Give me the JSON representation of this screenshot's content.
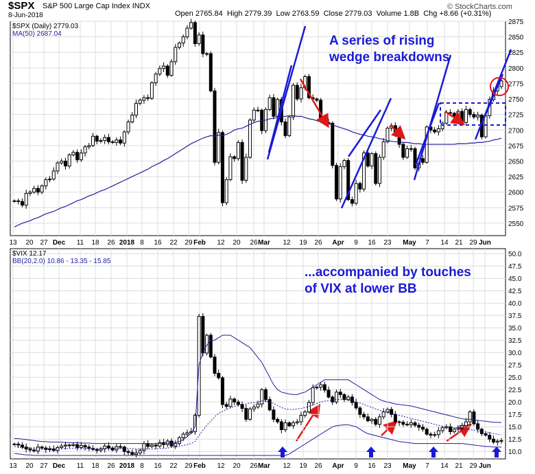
{
  "header": {
    "symbol": "$SPX",
    "name": "S&P 500 Large Cap Index",
    "exchange": "INDX",
    "date": "8-Jun-2018",
    "open_label": "Open",
    "open": "2765.84",
    "high_label": "High",
    "high": "2779.39",
    "low_label": "Low",
    "low": "2763.59",
    "close_label": "Close",
    "close": "2779.03",
    "volume_label": "Volume",
    "volume": "1.8B",
    "chg_label": "Chg",
    "chg": "+8.66 (+0.31%)",
    "brand": "© StockCharts.com"
  },
  "annotations": {
    "top_line1": "A series of rising",
    "top_line2": "wedge breakdowns",
    "bottom_line1": "...accompanied by touches",
    "bottom_line2": "of VIX at lower BB"
  },
  "colors": {
    "candle": "#000000",
    "ma": "#1f1f9e",
    "annotation": "#1a1ad6",
    "arrow": "#e01818",
    "grid": "#dcdcdc"
  },
  "chart_data": [
    {
      "type": "candlestick",
      "legend": [
        "$SPX (Daily) 2779.03",
        "MA(50) 2687.04"
      ],
      "ylim": [
        2530,
        2875
      ],
      "y_ticks": [
        2550,
        2575,
        2600,
        2625,
        2650,
        2675,
        2700,
        2725,
        2750,
        2775,
        2800,
        2825,
        2850,
        2875
      ],
      "x_tick_labels": [
        "13",
        "20",
        "27",
        "Dec",
        "11",
        "18",
        "26",
        "2018",
        "8",
        "16",
        "22",
        "29",
        "Feb",
        "12",
        "20",
        "26",
        "Mar",
        "12",
        "19",
        "26",
        "Apr",
        "9",
        "16",
        "23",
        "May",
        "7",
        "14",
        "21",
        "29",
        "Jun"
      ],
      "close": [
        2586,
        2585,
        2579,
        2598,
        2600,
        2606,
        2600,
        2610,
        2620,
        2621,
        2634,
        2647,
        2650,
        2642,
        2660,
        2664,
        2652,
        2663,
        2673,
        2675,
        2690,
        2682,
        2683,
        2688,
        2681,
        2680,
        2684,
        2679,
        2697,
        2713,
        2724,
        2743,
        2748,
        2752,
        2751,
        2776,
        2790,
        2799,
        2803,
        2788,
        2810,
        2833,
        2840,
        2850,
        2864,
        2873,
        2839,
        2853,
        2823,
        2823,
        2763,
        2648,
        2696,
        2583,
        2620,
        2657,
        2654,
        2680,
        2619,
        2656,
        2716,
        2732,
        2732,
        2699,
        2733,
        2752,
        2722,
        2749,
        2713,
        2691,
        2721,
        2772,
        2750,
        2768,
        2786,
        2752,
        2750,
        2748,
        2717,
        2712,
        2711,
        2643,
        2589,
        2641,
        2651,
        2588,
        2582,
        2614,
        2605,
        2663,
        2642,
        2662,
        2614,
        2656,
        2681,
        2703,
        2707,
        2692,
        2677,
        2656,
        2670,
        2670,
        2639,
        2654,
        2648,
        2705,
        2700,
        2697,
        2702,
        2711,
        2728,
        2727,
        2722,
        2730,
        2712,
        2733,
        2725,
        2721,
        2724,
        2689,
        2723,
        2749,
        2763,
        2770,
        2779
      ],
      "ma50": [
        2544,
        2547,
        2550,
        2552,
        2554,
        2557,
        2559,
        2562,
        2565,
        2567,
        2569,
        2572,
        2575,
        2577,
        2580,
        2583,
        2586,
        2588,
        2591,
        2594,
        2596,
        2599,
        2602,
        2604,
        2607,
        2610,
        2613,
        2616,
        2619,
        2622,
        2625,
        2628,
        2631,
        2634,
        2637,
        2641,
        2644,
        2647,
        2651,
        2654,
        2658,
        2662,
        2666,
        2670,
        2674,
        2678,
        2681,
        2684,
        2687,
        2689,
        2691,
        2690,
        2692,
        2691,
        2693,
        2696,
        2700,
        2702,
        2703,
        2706,
        2709,
        2712,
        2714,
        2715,
        2716,
        2718,
        2719,
        2720,
        2721,
        2722,
        2723,
        2723,
        2722,
        2722,
        2720,
        2718,
        2717,
        2715,
        2713,
        2711,
        2710,
        2708,
        2706,
        2704,
        2702,
        2700,
        2697,
        2695,
        2693,
        2692,
        2690,
        2689,
        2688,
        2686,
        2685,
        2683,
        2682,
        2681,
        2681,
        2680,
        2680,
        2679,
        2678,
        2678,
        2677,
        2677,
        2677,
        2677,
        2677,
        2677,
        2677,
        2677,
        2677,
        2678,
        2678,
        2678,
        2679,
        2679,
        2680,
        2680,
        2681,
        2682,
        2684,
        2685,
        2687
      ]
    },
    {
      "type": "candlestick",
      "legend": [
        "$VIX 12.17",
        "BB(20,2.0) 10.86 - 13.35 - 15.85"
      ],
      "ylim": [
        8.5,
        51
      ],
      "y_ticks": [
        10,
        12.5,
        15,
        17.5,
        20,
        22.5,
        25,
        27.5,
        30,
        32.5,
        35,
        37.5,
        40,
        42.5,
        45,
        47.5,
        50
      ],
      "y_tick_labels": [
        "10.0",
        "12.5",
        "15.0",
        "17.5",
        "20.0",
        "22.5",
        "25.0",
        "27.5",
        "30.0",
        "32.5",
        "35.0",
        "37.5",
        "40.0",
        "42.5",
        "45.0",
        "47.5",
        "50.0"
      ],
      "x_tick_labels": [
        "13",
        "20",
        "27",
        "Dec",
        "11",
        "18",
        "26",
        "2018",
        "8",
        "16",
        "22",
        "29",
        "Feb",
        "12",
        "20",
        "26",
        "Mar",
        "12",
        "19",
        "26",
        "Apr",
        "9",
        "16",
        "23",
        "May",
        "7",
        "14",
        "21",
        "29",
        "Jun"
      ],
      "close": [
        11.5,
        11.3,
        10.9,
        10.5,
        10.3,
        10.1,
        10.9,
        10.7,
        10.4,
        10.5,
        10.2,
        10.8,
        11.1,
        11.3,
        11.2,
        11.4,
        10.8,
        11.2,
        10.9,
        10.6,
        10.4,
        10.2,
        10.5,
        11.1,
        10.7,
        10.3,
        11.0,
        10.9,
        10.0,
        9.8,
        9.4,
        9.7,
        10.2,
        11.6,
        11.0,
        11.3,
        11.1,
        11.8,
        11.4,
        12.1,
        11.1,
        11.6,
        12.8,
        13.5,
        13.8,
        14.0,
        17.3,
        37.3,
        29.9,
        33.5,
        29.1,
        25.8,
        24.9,
        19.5,
        19.1,
        20.6,
        20.0,
        19.5,
        18.7,
        16.5,
        18.6,
        19.0,
        19.6,
        22.5,
        20.5,
        18.4,
        16.5,
        16.0,
        14.4,
        15.8,
        15.2,
        15.8,
        16.0,
        17.3,
        18.0,
        19.9,
        22.9,
        23.0,
        23.5,
        22.4,
        21.0,
        20.0,
        22.0,
        21.5,
        20.5,
        21.0,
        19.9,
        18.8,
        17.5,
        17.0,
        16.2,
        16.5,
        15.5,
        17.0,
        18.0,
        18.5,
        17.5,
        16.0,
        15.9,
        15.5,
        15.4,
        15.8,
        15.3,
        14.9,
        14.5,
        13.5,
        13.3,
        13.4,
        14.2,
        14.8,
        15.0,
        14.0,
        14.5,
        14.8,
        15.2,
        16.0,
        18.0,
        15.6,
        14.5,
        13.6,
        13.3,
        12.5,
        11.9,
        12.1,
        12.2
      ],
      "bb_upper": [
        12.6,
        12.6,
        12.5,
        12.4,
        12.3,
        12.2,
        12.1,
        12.0,
        12.0,
        11.9,
        11.9,
        11.9,
        11.9,
        11.8,
        11.8,
        11.8,
        11.8,
        11.7,
        11.7,
        11.7,
        11.6,
        11.6,
        11.6,
        11.6,
        11.6,
        11.6,
        11.6,
        11.6,
        11.6,
        11.6,
        11.6,
        11.6,
        11.6,
        11.6,
        11.6,
        11.6,
        11.6,
        11.6,
        11.6,
        11.7,
        11.7,
        11.8,
        12.0,
        12.4,
        13.0,
        13.7,
        15.0,
        27.5,
        30.0,
        31.5,
        32.5,
        32.5,
        33.0,
        33.5,
        33.5,
        33.5,
        33.0,
        32.5,
        32.0,
        31.5,
        31.0,
        30.0,
        29.0,
        28.0,
        26.5,
        25.0,
        23.5,
        22.5,
        22.0,
        21.8,
        21.6,
        21.5,
        21.5,
        21.8,
        22.0,
        22.5,
        23.0,
        23.5,
        24.0,
        24.5,
        24.5,
        24.5,
        24.5,
        24.5,
        24.5,
        24.5,
        24.0,
        23.5,
        23.0,
        22.5,
        22.0,
        21.5,
        21.0,
        20.5,
        20.2,
        20.0,
        19.8,
        19.6,
        19.5,
        19.4,
        19.3,
        19.2,
        19.0,
        18.8,
        18.6,
        18.4,
        18.2,
        18.0,
        17.8,
        17.6,
        17.4,
        17.2,
        17.0,
        16.8,
        16.6,
        16.5,
        16.5,
        16.4,
        16.3,
        16.2,
        16.1,
        16.0,
        15.9,
        15.9,
        15.85
      ],
      "bb_mid": [
        11.0,
        10.9,
        10.8,
        10.8,
        10.7,
        10.7,
        10.7,
        10.6,
        10.6,
        10.6,
        10.6,
        10.6,
        10.6,
        10.6,
        10.6,
        10.6,
        10.6,
        10.6,
        10.6,
        10.6,
        10.6,
        10.6,
        10.6,
        10.6,
        10.6,
        10.6,
        10.6,
        10.6,
        10.6,
        10.6,
        10.6,
        10.5,
        10.5,
        10.5,
        10.5,
        10.5,
        10.5,
        10.6,
        10.6,
        10.7,
        10.8,
        10.9,
        11.0,
        11.2,
        11.4,
        11.6,
        12.0,
        13.2,
        14.3,
        15.3,
        16.2,
        17.0,
        17.7,
        18.1,
        18.5,
        18.8,
        19.1,
        19.3,
        19.5,
        19.6,
        19.8,
        19.9,
        20.0,
        20.2,
        20.2,
        20.0,
        19.7,
        19.3,
        18.9,
        18.6,
        18.5,
        18.5,
        18.6,
        18.7,
        18.9,
        19.1,
        19.4,
        19.7,
        20.0,
        20.2,
        20.3,
        20.4,
        20.5,
        20.5,
        20.5,
        20.4,
        20.2,
        20.0,
        19.8,
        19.5,
        19.2,
        18.9,
        18.6,
        18.3,
        18.1,
        17.9,
        17.7,
        17.5,
        17.3,
        17.1,
        16.9,
        16.7,
        16.5,
        16.3,
        16.1,
        15.9,
        15.7,
        15.5,
        15.3,
        15.1,
        15.0,
        14.9,
        14.8,
        14.7,
        14.6,
        14.5,
        14.4,
        14.3,
        14.2,
        14.1,
        14.0,
        13.8,
        13.6,
        13.5,
        13.35
      ],
      "bb_lower": [
        9.6,
        9.5,
        9.4,
        9.3,
        9.3,
        9.2,
        9.2,
        9.2,
        9.2,
        9.2,
        9.2,
        9.2,
        9.2,
        9.2,
        9.2,
        9.2,
        9.2,
        9.2,
        9.2,
        9.2,
        9.2,
        9.2,
        9.2,
        9.2,
        9.2,
        9.2,
        9.2,
        9.2,
        9.2,
        9.2,
        9.2,
        9.2,
        9.2,
        9.2,
        9.2,
        9.2,
        9.2,
        9.2,
        9.2,
        9.2,
        9.2,
        9.2,
        9.2,
        9.2,
        9.2,
        9.2,
        9.2,
        9.2,
        9.2,
        9.2,
        9.2,
        9.2,
        9.2,
        9.2,
        9.2,
        9.2,
        9.2,
        9.2,
        9.2,
        9.2,
        9.2,
        9.2,
        9.2,
        9.2,
        9.2,
        9.2,
        9.2,
        9.2,
        9.2,
        9.2,
        9.5,
        10.0,
        10.5,
        11.0,
        11.5,
        12.0,
        12.5,
        13.0,
        13.5,
        14.0,
        14.5,
        15.0,
        15.2,
        15.3,
        15.4,
        15.4,
        15.2,
        15.0,
        14.5,
        14.0,
        13.6,
        13.4,
        13.2,
        13.0,
        12.8,
        12.6,
        12.4,
        12.2,
        12.0,
        11.9,
        11.8,
        11.7,
        11.6,
        11.6,
        11.6,
        11.6,
        11.6,
        11.6,
        11.6,
        11.6,
        11.6,
        11.6,
        11.6,
        11.6,
        11.6,
        11.5,
        11.4,
        11.3,
        11.2,
        11.1,
        11.0,
        11.0,
        10.9,
        10.9,
        10.86
      ]
    }
  ]
}
